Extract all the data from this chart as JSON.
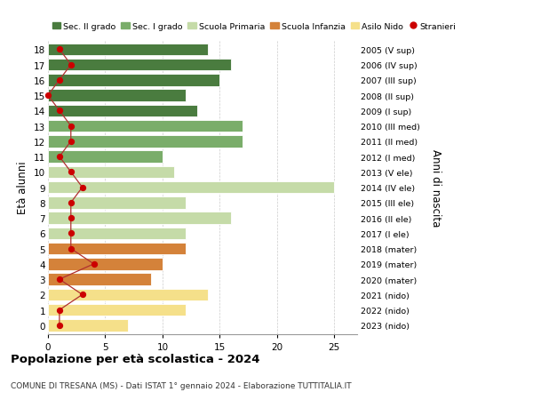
{
  "ages": [
    18,
    17,
    16,
    15,
    14,
    13,
    12,
    11,
    10,
    9,
    8,
    7,
    6,
    5,
    4,
    3,
    2,
    1,
    0
  ],
  "bar_values": [
    14,
    16,
    15,
    12,
    13,
    17,
    17,
    10,
    11,
    25,
    12,
    16,
    12,
    12,
    10,
    9,
    14,
    12,
    7
  ],
  "bar_colors": [
    "#4a7c3f",
    "#4a7c3f",
    "#4a7c3f",
    "#4a7c3f",
    "#4a7c3f",
    "#7aad6a",
    "#7aad6a",
    "#7aad6a",
    "#c5dba8",
    "#c5dba8",
    "#c5dba8",
    "#c5dba8",
    "#c5dba8",
    "#d4823a",
    "#d4823a",
    "#d4823a",
    "#f5e08a",
    "#f5e08a",
    "#f5e08a"
  ],
  "stranieri_values": [
    1,
    2,
    1,
    0,
    1,
    2,
    2,
    1,
    2,
    3,
    2,
    2,
    2,
    2,
    4,
    1,
    3,
    1,
    1
  ],
  "right_labels": [
    "2005 (V sup)",
    "2006 (IV sup)",
    "2007 (III sup)",
    "2008 (II sup)",
    "2009 (I sup)",
    "2010 (III med)",
    "2011 (II med)",
    "2012 (I med)",
    "2013 (V ele)",
    "2014 (IV ele)",
    "2015 (III ele)",
    "2016 (II ele)",
    "2017 (I ele)",
    "2018 (mater)",
    "2019 (mater)",
    "2020 (mater)",
    "2021 (nido)",
    "2022 (nido)",
    "2023 (nido)"
  ],
  "ylabel": "Età alunni",
  "right_ylabel": "Anni di nascita",
  "title": "Popolazione per età scolastica - 2024",
  "subtitle": "COMUNE DI TRESANA (MS) - Dati ISTAT 1° gennaio 2024 - Elaborazione TUTTITALIA.IT",
  "legend_items": [
    {
      "label": "Sec. II grado",
      "color": "#4a7c3f"
    },
    {
      "label": "Sec. I grado",
      "color": "#7aad6a"
    },
    {
      "label": "Scuola Primaria",
      "color": "#c5dba8"
    },
    {
      "label": "Scuola Infanzia",
      "color": "#d4823a"
    },
    {
      "label": "Asilo Nido",
      "color": "#f5e08a"
    },
    {
      "label": "Stranieri",
      "color": "#cc0000"
    }
  ],
  "xlim": [
    0,
    27
  ],
  "xticks": [
    0,
    5,
    10,
    15,
    20,
    25
  ],
  "grid_color": "#cccccc",
  "bg_color": "#ffffff",
  "stranieri_line_color": "#b03030",
  "stranieri_dot_color": "#cc0000"
}
